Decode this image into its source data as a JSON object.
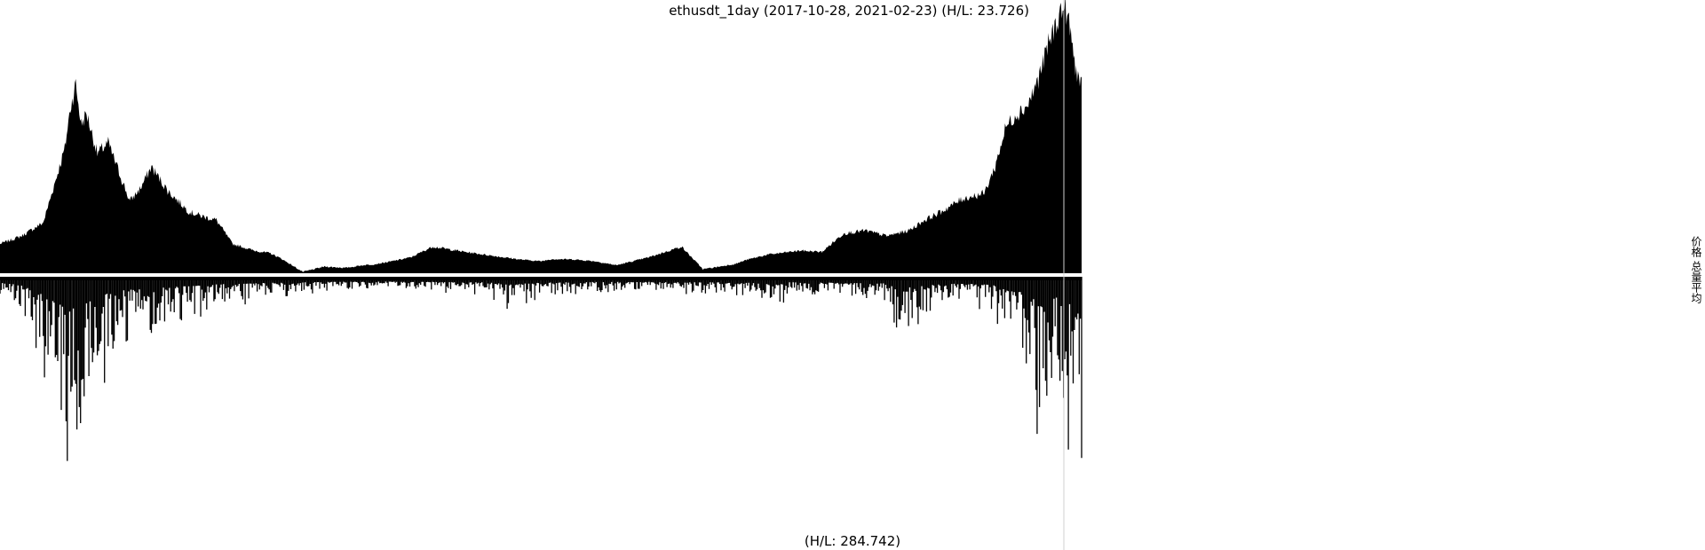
{
  "chart_data": {
    "type": "area",
    "title": "ethusdt_1day (2017-10-28, 2021-02-23) (H/L: 23.726)",
    "lower_label": "(H/L: 284.742)",
    "right_labels": [
      "价格",
      "总量平均"
    ],
    "x_range": [
      "2017-10-28",
      "2021-02-23"
    ],
    "price_hl_ratio": 23.726,
    "volume_hl_ratio": 284.742,
    "colors": {
      "fill": "#000000",
      "background": "#ffffff",
      "divider": "#ffffff",
      "cursor_line": "#d0d0d0"
    },
    "price_series": {
      "name": "价格",
      "x": [
        0,
        0.02,
        0.04,
        0.05,
        0.06,
        0.065,
        0.07,
        0.075,
        0.08,
        0.09,
        0.1,
        0.11,
        0.12,
        0.13,
        0.14,
        0.155,
        0.165,
        0.175,
        0.19,
        0.2,
        0.215,
        0.235,
        0.25,
        0.26,
        0.28,
        0.3,
        0.32,
        0.335,
        0.345,
        0.36,
        0.38,
        0.4,
        0.43,
        0.46,
        0.48,
        0.5,
        0.51,
        0.53,
        0.55,
        0.57,
        0.6,
        0.63,
        0.65,
        0.68,
        0.69,
        0.7,
        0.71,
        0.72,
        0.74,
        0.76,
        0.78,
        0.8,
        0.82,
        0.83,
        0.84,
        0.855,
        0.87,
        0.89,
        0.91,
        0.92,
        0.93,
        0.94,
        0.95,
        0.955,
        0.96,
        0.965,
        0.97,
        0.975,
        0.98,
        0.985,
        0.99,
        0.993,
        0.996,
        1.0
      ],
      "y": [
        0.11,
        0.14,
        0.19,
        0.33,
        0.47,
        0.62,
        0.71,
        0.56,
        0.6,
        0.45,
        0.49,
        0.38,
        0.27,
        0.32,
        0.4,
        0.31,
        0.27,
        0.23,
        0.21,
        0.2,
        0.11,
        0.085,
        0.075,
        0.055,
        0.005,
        0.025,
        0.02,
        0.03,
        0.033,
        0.043,
        0.06,
        0.1,
        0.08,
        0.063,
        0.052,
        0.045,
        0.053,
        0.052,
        0.045,
        0.03,
        0.06,
        0.1,
        0.015,
        0.035,
        0.05,
        0.06,
        0.07,
        0.075,
        0.085,
        0.08,
        0.15,
        0.16,
        0.14,
        0.15,
        0.16,
        0.2,
        0.23,
        0.28,
        0.3,
        0.4,
        0.55,
        0.6,
        0.63,
        0.68,
        0.73,
        0.8,
        0.87,
        0.92,
        0.98,
        1.0,
        0.9,
        0.8,
        0.75,
        0.7
      ]
    },
    "volume_series": {
      "name": "总量平均",
      "x": [
        0,
        0.02,
        0.035,
        0.045,
        0.055,
        0.062,
        0.068,
        0.075,
        0.082,
        0.09,
        0.11,
        0.13,
        0.15,
        0.17,
        0.2,
        0.23,
        0.25,
        0.3,
        0.35,
        0.4,
        0.45,
        0.47,
        0.5,
        0.55,
        0.6,
        0.65,
        0.7,
        0.715,
        0.73,
        0.78,
        0.82,
        0.83,
        0.86,
        0.88,
        0.9,
        0.92,
        0.93,
        0.945,
        0.955,
        0.96,
        0.965,
        0.97,
        0.975,
        0.98,
        0.985,
        0.99,
        0.995,
        1.0
      ],
      "y": [
        0.05,
        0.1,
        0.3,
        0.45,
        0.6,
        0.75,
        0.7,
        0.62,
        0.55,
        0.4,
        0.25,
        0.22,
        0.18,
        0.15,
        0.1,
        0.08,
        0.06,
        0.04,
        0.03,
        0.04,
        0.05,
        0.1,
        0.06,
        0.04,
        0.04,
        0.05,
        0.06,
        0.12,
        0.05,
        0.06,
        0.08,
        0.2,
        0.12,
        0.08,
        0.09,
        0.12,
        0.25,
        0.3,
        0.45,
        0.65,
        0.55,
        0.5,
        0.45,
        0.4,
        0.55,
        0.6,
        0.75,
        1.0
      ]
    }
  }
}
